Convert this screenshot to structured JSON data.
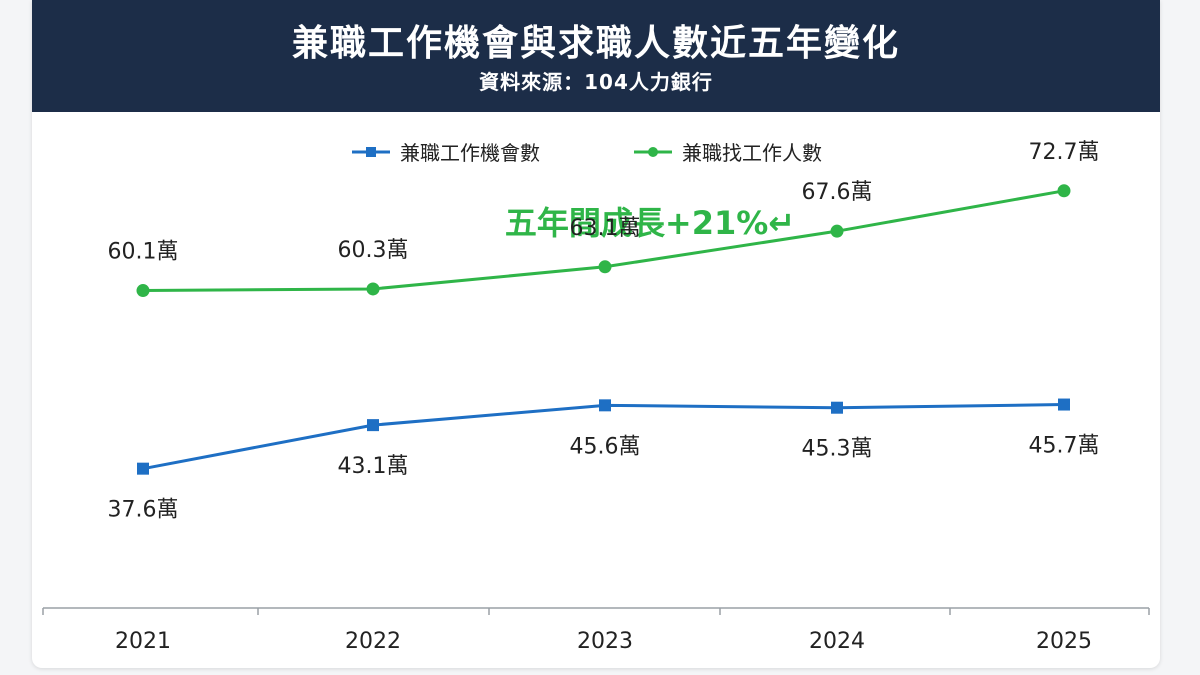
{
  "header": {
    "title": "兼職工作機會與求職人數近五年變化",
    "subtitle": "資料來源：104人力銀行"
  },
  "annotation": "五年間成長+21%↵",
  "colors": {
    "header_bg": "#1c2d48",
    "blue": "#1e6fc4",
    "green": "#2fb548",
    "annotation": "#2fb548"
  },
  "chart_data": {
    "type": "line",
    "categories": [
      "2021",
      "2022",
      "2023",
      "2024",
      "2025"
    ],
    "value_suffix": "萬",
    "series": [
      {
        "name": "兼職工作機會數",
        "values": [
          37.6,
          43.1,
          45.6,
          45.3,
          45.7
        ],
        "color": "#1e6fc4",
        "marker": "square",
        "label_position": "below"
      },
      {
        "name": "兼職找工作人數",
        "values": [
          60.1,
          60.3,
          63.1,
          67.6,
          72.7
        ],
        "color": "#2fb548",
        "marker": "circle",
        "label_position": "above"
      }
    ],
    "ylim": [
      20,
      80
    ],
    "grid": false,
    "legend": "top-center",
    "title": "兼職工作機會與求職人數近五年變化"
  }
}
